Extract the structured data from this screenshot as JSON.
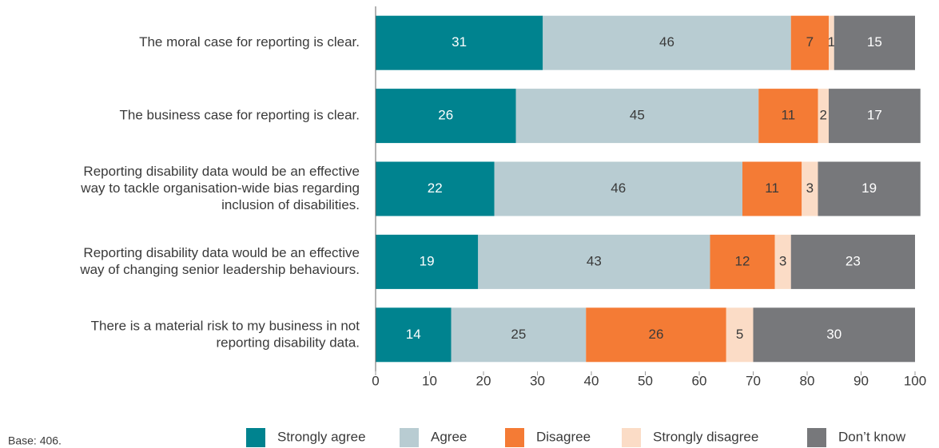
{
  "chart_data": {
    "type": "stacked_barh",
    "categories": [
      [
        "The moral case for reporting is clear."
      ],
      [
        "The business case for reporting is clear."
      ],
      [
        "Reporting disability data would be an effective",
        "way to tackle organisation-wide bias regarding",
        "inclusion of disabilities."
      ],
      [
        "Reporting disability data would be an effective",
        "way of changing senior leadership behaviours."
      ],
      [
        "There is a material risk to my business in not",
        "reporting disability data."
      ]
    ],
    "series": [
      {
        "name": "Strongly agree",
        "color": "#00838f",
        "values": [
          31,
          26,
          22,
          19,
          14
        ]
      },
      {
        "name": "Agree",
        "color": "#b8ccd2",
        "values": [
          46,
          45,
          46,
          43,
          25
        ]
      },
      {
        "name": "Disagree",
        "color": "#f47b35",
        "values": [
          7,
          11,
          11,
          12,
          26
        ]
      },
      {
        "name": "Strongly disagree",
        "color": "#fbdcc6",
        "values": [
          1,
          2,
          3,
          3,
          5
        ]
      },
      {
        "name": "Don’t know",
        "color": "#77787b",
        "values": [
          15,
          17,
          19,
          23,
          30
        ]
      }
    ],
    "xlim": [
      0,
      100
    ],
    "xticks": [
      0,
      10,
      20,
      30,
      40,
      50,
      60,
      70,
      80,
      90,
      100
    ],
    "legend": "bottom",
    "note": "Base: 406."
  }
}
